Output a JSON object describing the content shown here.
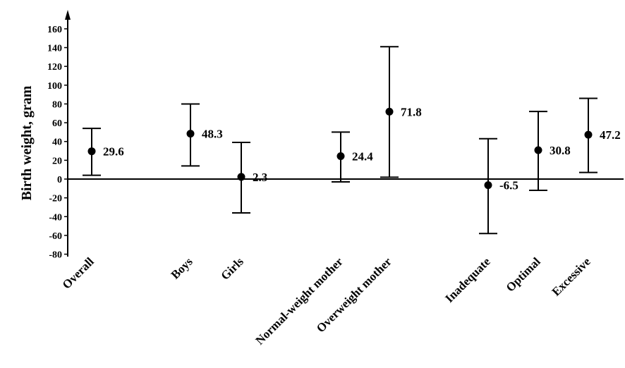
{
  "chart_data": {
    "type": "scatter",
    "ylabel": "Birth weight, gram",
    "xlabel": "",
    "ylim": [
      -80,
      160
    ],
    "yticks": [
      160,
      140,
      120,
      100,
      80,
      60,
      40,
      20,
      0,
      -20,
      -40,
      -60,
      -80
    ],
    "points": [
      {
        "category": "Overall",
        "value": 29.6,
        "label": "29.6",
        "lower": 4,
        "upper": 54
      },
      {
        "category": "Boys",
        "value": 48.3,
        "label": "48.3",
        "lower": 14,
        "upper": 80
      },
      {
        "category": "Girls",
        "value": 2.3,
        "label": "2.3",
        "lower": -36,
        "upper": 39
      },
      {
        "category": "Normal-weight mother",
        "value": 24.4,
        "label": "24.4",
        "lower": -3,
        "upper": 50
      },
      {
        "category": "Overweight mother",
        "value": 71.8,
        "label": "71.8",
        "lower": 2,
        "upper": 141
      },
      {
        "category": "Inadequate",
        "value": -6.5,
        "label": "-6.5",
        "lower": -58,
        "upper": 43
      },
      {
        "category": "Optimal",
        "value": 30.8,
        "label": "30.8",
        "lower": -12,
        "upper": 72
      },
      {
        "category": "Excessive",
        "value": 47.2,
        "label": "47.2",
        "lower": 7,
        "upper": 86
      }
    ],
    "grid": false,
    "legend": "none"
  },
  "colors": {
    "ink": "#000000",
    "background": "#ffffff"
  }
}
